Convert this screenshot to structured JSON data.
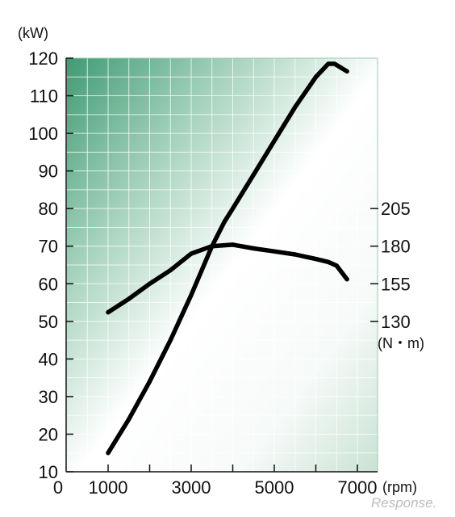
{
  "chart_data": {
    "type": "line",
    "x_unit_label": "(rpm)",
    "y_left_unit_label": "(kW)",
    "y_right_unit_label": "(N・m)",
    "x_ticks": [
      0,
      1000,
      3000,
      5000,
      7000
    ],
    "x_minor_ticks": [
      2000,
      4000,
      6000
    ],
    "xlim": [
      0,
      7500
    ],
    "y_left_ticks": [
      10,
      20,
      30,
      40,
      50,
      60,
      70,
      80,
      90,
      100,
      110,
      120
    ],
    "y_left_lim": [
      10,
      120
    ],
    "y_right_ticks": [
      130,
      155,
      180,
      205
    ],
    "grid": true,
    "series": [
      {
        "axis": "left",
        "x": [
          1000,
          1500,
          2000,
          2500,
          3000,
          3500,
          3800,
          4000,
          4500,
          5000,
          5500,
          6000,
          6300,
          6450,
          6750
        ],
        "y": [
          15,
          24,
          34,
          45,
          57,
          70,
          76.5,
          80,
          89,
          98,
          107,
          115,
          118.5,
          118.5,
          116.5
        ]
      },
      {
        "axis": "right",
        "x": [
          1000,
          1500,
          2000,
          2500,
          3000,
          3500,
          4000,
          4500,
          5000,
          5500,
          6000,
          6300,
          6500,
          6750
        ],
        "y": [
          136,
          145,
          155,
          164,
          175,
          180,
          181,
          178.5,
          176.5,
          174.5,
          171.5,
          169.5,
          167,
          158
        ]
      }
    ]
  },
  "watermark": "Response."
}
